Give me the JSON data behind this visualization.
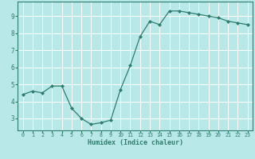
{
  "x": [
    0,
    1,
    2,
    3,
    4,
    5,
    6,
    7,
    8,
    9,
    10,
    11,
    12,
    13,
    14,
    15,
    16,
    17,
    18,
    19,
    20,
    21,
    22,
    23
  ],
  "y": [
    4.4,
    4.6,
    4.5,
    4.9,
    4.9,
    3.6,
    3.0,
    2.65,
    2.75,
    2.9,
    4.7,
    6.1,
    7.8,
    8.7,
    8.5,
    9.3,
    9.3,
    9.2,
    9.1,
    9.0,
    8.9,
    8.7,
    8.6,
    8.5
  ],
  "xlabel": "Humidex (Indice chaleur)",
  "xlim": [
    -0.5,
    23.5
  ],
  "ylim": [
    2.3,
    9.85
  ],
  "yticks": [
    3,
    4,
    5,
    6,
    7,
    8,
    9
  ],
  "xticks": [
    0,
    1,
    2,
    3,
    4,
    5,
    6,
    7,
    8,
    9,
    10,
    11,
    12,
    13,
    14,
    15,
    16,
    17,
    18,
    19,
    20,
    21,
    22,
    23
  ],
  "line_color": "#2e7d6e",
  "marker": "D",
  "marker_size": 2.0,
  "bg_color": "#b8e8e8",
  "grid_color": "#ffffff",
  "axis_color": "#2e7d6e",
  "tick_color": "#2e7d6e",
  "label_color": "#2e7d6e",
  "font_family": "monospace",
  "xlabel_fontsize": 6.0,
  "xtick_fontsize": 4.8,
  "ytick_fontsize": 5.5
}
